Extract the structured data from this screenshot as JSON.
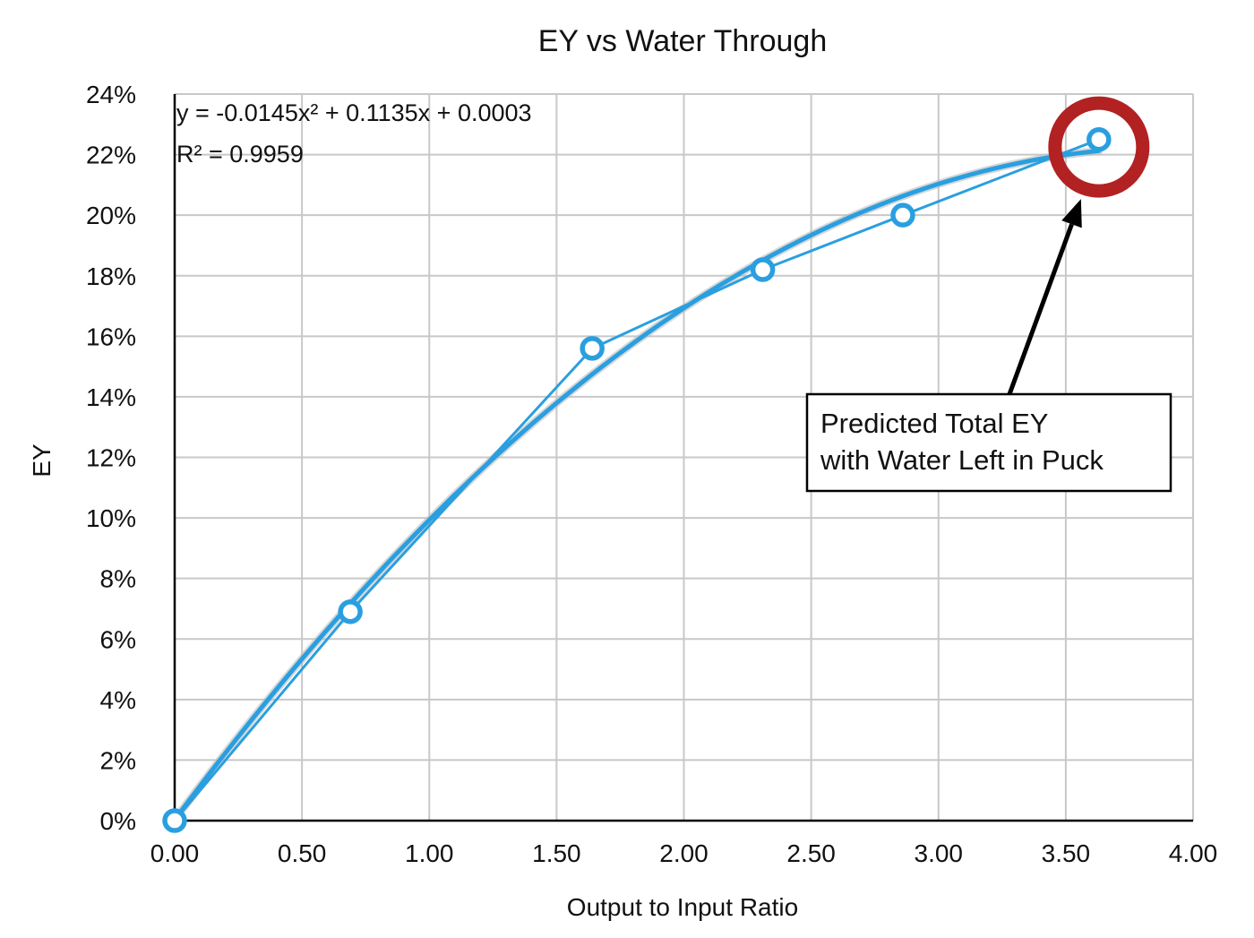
{
  "chart_data": {
    "type": "scatter",
    "title": "EY vs Water Through",
    "xlabel": "Output to Input Ratio",
    "ylabel": "EY",
    "xlim": [
      0,
      4
    ],
    "ylim": [
      0,
      0.24
    ],
    "x_ticks": [
      "0.00",
      "0.50",
      "1.00",
      "1.50",
      "2.00",
      "2.50",
      "3.00",
      "3.50",
      "4.00"
    ],
    "y_ticks": [
      "0%",
      "2%",
      "4%",
      "6%",
      "8%",
      "10%",
      "12%",
      "14%",
      "16%",
      "18%",
      "20%",
      "22%",
      "24%"
    ],
    "grid": true,
    "series": [
      {
        "x": [
          0.0,
          0.69,
          1.64,
          2.31,
          2.86,
          3.63
        ],
        "y": [
          0.0,
          0.069,
          0.156,
          0.182,
          0.2,
          0.225
        ]
      }
    ],
    "trendline": {
      "type": "polynomial",
      "coefficients": [
        -0.0145,
        0.1135,
        0.0003
      ],
      "x_range": [
        0.0,
        3.63
      ],
      "equation": "y = -0.0145x² + 0.1135x + 0.0003",
      "r_squared": "R² = 0.9959"
    },
    "annotations": {
      "callout_lines": [
        "Predicted Total EY",
        "with Water Left in Puck"
      ],
      "highlight_point": {
        "x": 3.63,
        "y": 0.2225
      }
    },
    "colors": {
      "series": "#2a9fe0",
      "highlight": "#b22222",
      "grid": "#c8c8c8",
      "axis": "#000000"
    }
  }
}
